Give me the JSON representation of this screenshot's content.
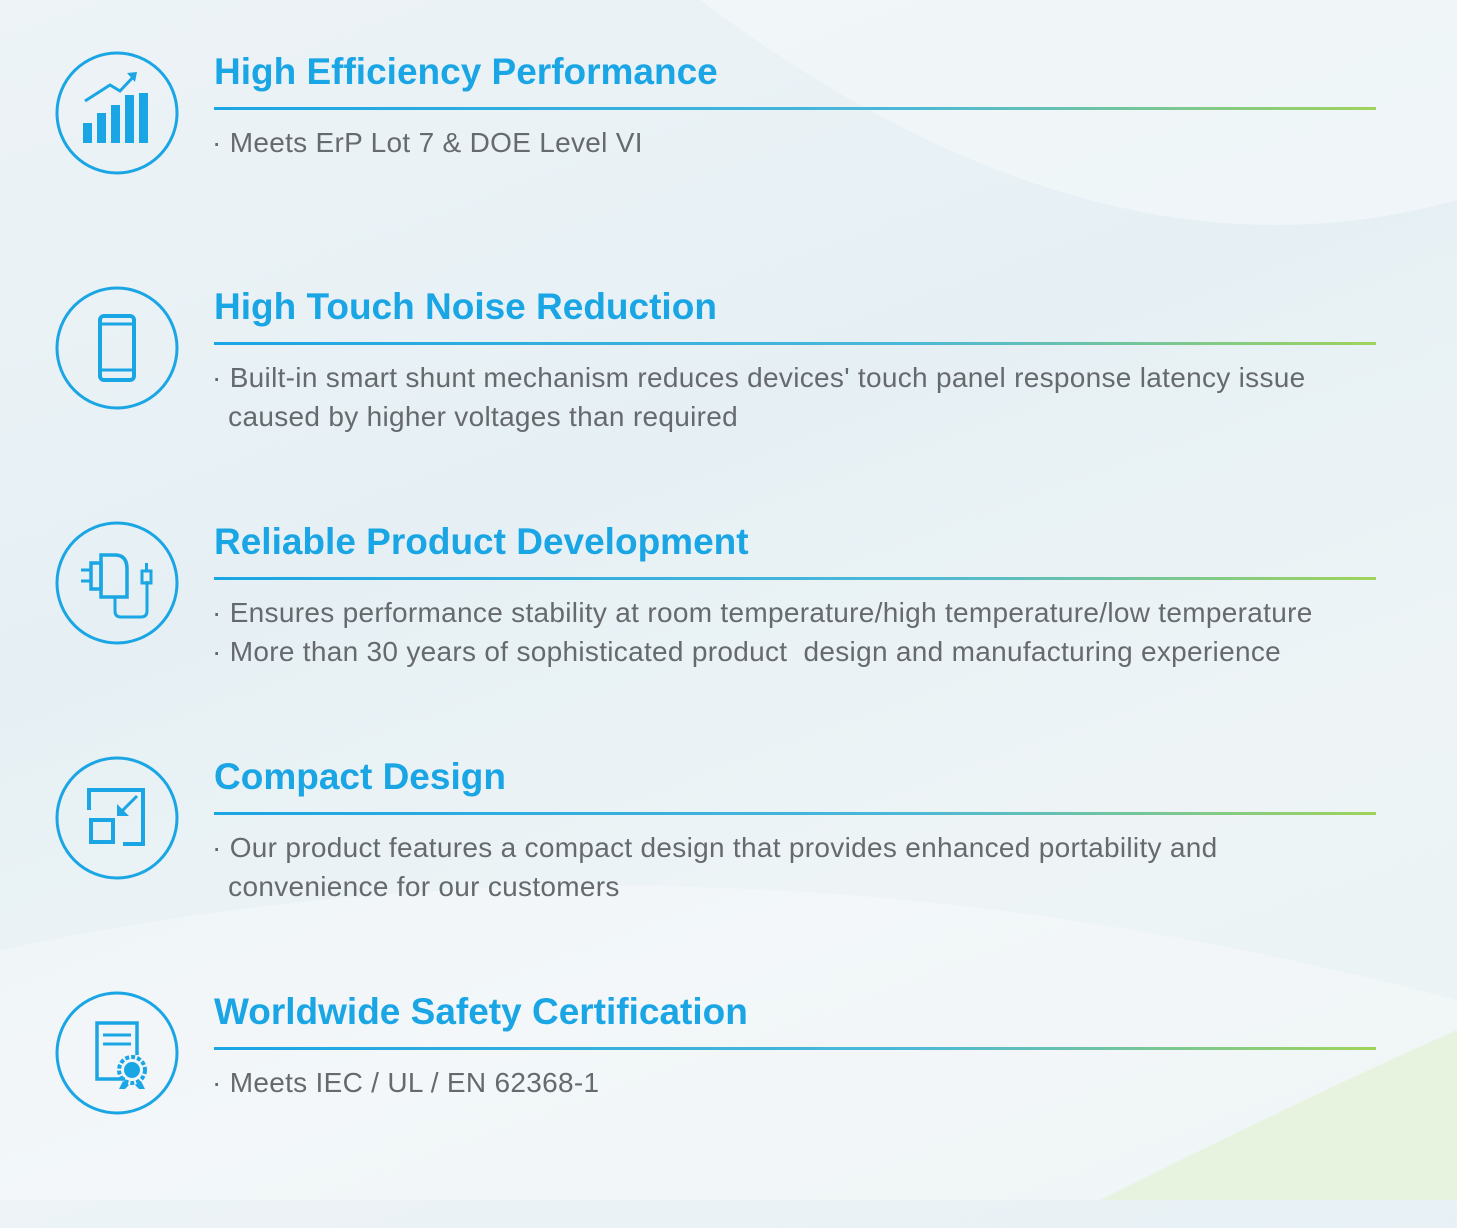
{
  "accent_color": "#1aa5e4",
  "features": [
    {
      "icon": "bar-chart-growth-icon",
      "title": "High Efficiency Performance",
      "bullets": [
        "· Meets ErP Lot 7 & DOE Level VI"
      ]
    },
    {
      "icon": "smartphone-icon",
      "title": "High Touch Noise Reduction",
      "bullets": [
        "· Built-in smart shunt mechanism reduces devices' touch panel response latency issue",
        "  caused by higher voltages than required"
      ]
    },
    {
      "icon": "power-adapter-icon",
      "title": "Reliable Product Development",
      "bullets": [
        "· Ensures performance stability at room temperature/high temperature/low temperature",
        "· More than 30 years of sophisticated product  design and manufacturing experience"
      ]
    },
    {
      "icon": "compact-resize-icon",
      "title": "Compact Design",
      "bullets": [
        "· Our product features a compact design that provides enhanced portability and",
        "  convenience for our customers"
      ]
    },
    {
      "icon": "certificate-icon",
      "title": "Worldwide Safety Certification",
      "bullets": [
        "· Meets IEC / UL / EN 62368-1"
      ]
    }
  ]
}
